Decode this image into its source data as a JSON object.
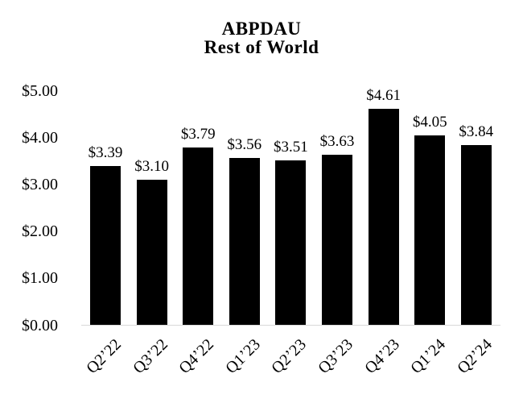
{
  "chart_data": {
    "type": "bar",
    "title": "ABPDAU",
    "subtitle": "Rest of World",
    "categories": [
      "Q2’22",
      "Q3’22",
      "Q4’22",
      "Q1’23",
      "Q2’23",
      "Q3’23",
      "Q4’23",
      "Q1’24",
      "Q2’24"
    ],
    "values": [
      3.39,
      3.1,
      3.79,
      3.56,
      3.51,
      3.63,
      4.61,
      4.05,
      3.84
    ],
    "bar_labels": [
      "$3.39",
      "$3.10",
      "$3.79",
      "$3.56",
      "$3.51",
      "$3.63",
      "$4.61",
      "$4.05",
      "$3.84"
    ],
    "xlabel": "",
    "ylabel": "",
    "ylim": [
      0,
      5
    ],
    "y_ticks": [
      {
        "value": 5,
        "label": "$5.00"
      },
      {
        "value": 4,
        "label": "$4.00"
      },
      {
        "value": 3,
        "label": "$3.00"
      },
      {
        "value": 2,
        "label": "$2.00"
      },
      {
        "value": 1,
        "label": "$1.00"
      },
      {
        "value": 0,
        "label": "$0.00"
      }
    ],
    "grid": false,
    "legend": null,
    "colors": {
      "bar": "#000000",
      "axis_line": "#d9d9d9",
      "background": "#ffffff",
      "text": "#000000"
    }
  }
}
